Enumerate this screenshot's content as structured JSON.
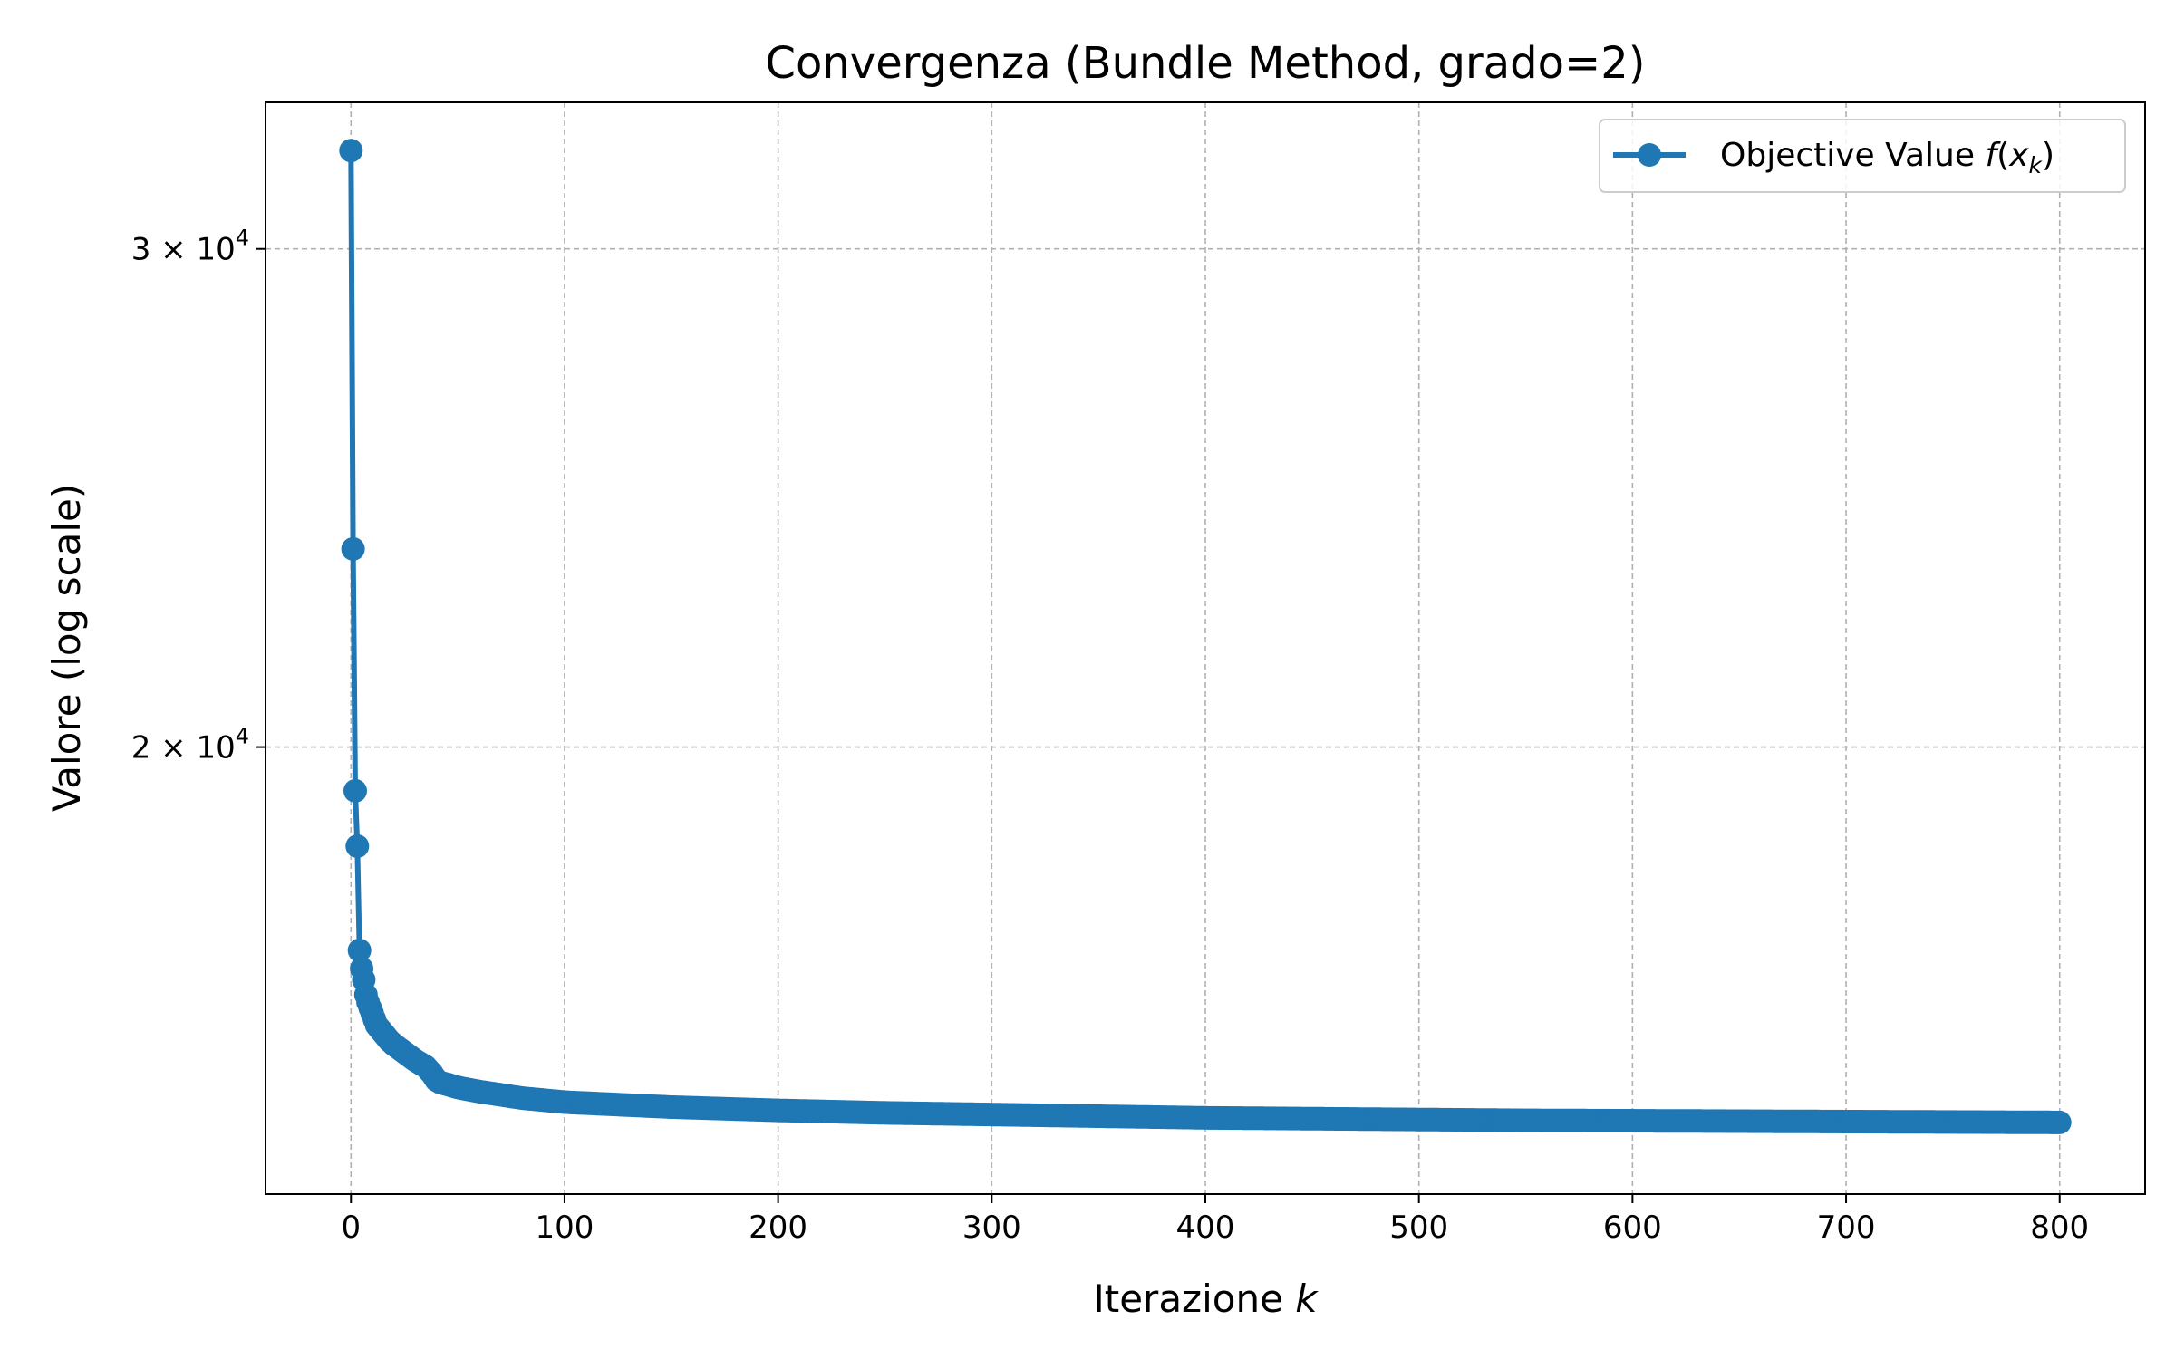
{
  "chart_data": {
    "type": "line",
    "title": "Convergenza (Bundle Method, grado=2)",
    "xlabel": "Iterazione",
    "xlabel_var": "k",
    "ylabel": "Valore (log scale)",
    "xlim": [
      -40,
      840
    ],
    "ylim": [
      13900,
      33800
    ],
    "yscale": "log",
    "grid": true,
    "legend_position": "top-right",
    "x_ticks": [
      0,
      100,
      200,
      300,
      400,
      500,
      600,
      700,
      800
    ],
    "y_ticks": [
      {
        "value": 20000,
        "mantissa": "2",
        "base": "10",
        "exponent": "4"
      },
      {
        "value": 30000,
        "mantissa": "3",
        "base": "10",
        "exponent": "4"
      }
    ],
    "series": [
      {
        "name": "Objective Value",
        "name_math": "f(x_k)",
        "legend_func": "f",
        "legend_var": "x",
        "legend_sub": "k",
        "color": "#1f77b4",
        "marker": "circle",
        "x": [
          0,
          1,
          2,
          3,
          4,
          5,
          6,
          7,
          8,
          10,
          12,
          15,
          18,
          20,
          25,
          30,
          35,
          38,
          40,
          42,
          45,
          50,
          60,
          70,
          80,
          100,
          125,
          150,
          175,
          200,
          250,
          300,
          350,
          400,
          450,
          500,
          550,
          600,
          650,
          700,
          750,
          800
        ],
        "y": [
          32500,
          23500,
          19300,
          18450,
          16950,
          16700,
          16550,
          16350,
          16250,
          16100,
          15950,
          15850,
          15750,
          15700,
          15600,
          15500,
          15420,
          15330,
          15250,
          15220,
          15200,
          15160,
          15110,
          15070,
          15030,
          14980,
          14950,
          14920,
          14900,
          14880,
          14850,
          14830,
          14810,
          14790,
          14780,
          14770,
          14760,
          14755,
          14750,
          14745,
          14740,
          14735
        ]
      }
    ]
  }
}
